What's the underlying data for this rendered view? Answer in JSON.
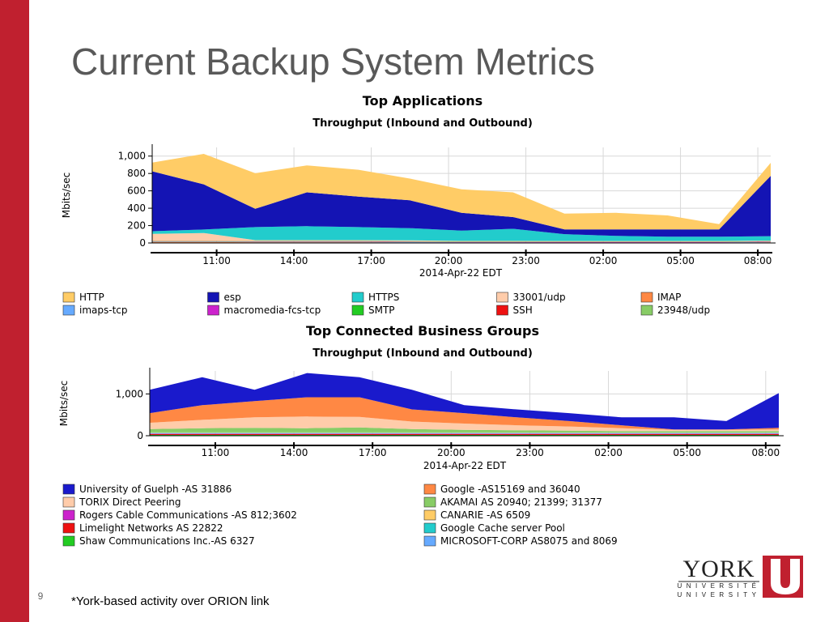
{
  "slide": {
    "title": "Current Backup System Metrics",
    "page_number": "9",
    "footnote": "*York-based activity over ORION link",
    "logo": {
      "name": "YORK",
      "line1": "UNIVERSITÉ",
      "line2": "UNIVERSITY"
    }
  },
  "chart_data": [
    {
      "type": "stacked-area",
      "title": "Top Applications",
      "subtitle": "Throughput (Inbound and Outbound)",
      "xlabel": "2014-Apr-22 EDT",
      "ylabel": "Mbits/sec",
      "x": [
        8.5,
        10.5,
        12.5,
        14.5,
        16.5,
        18.5,
        20.5,
        22.5,
        24.5,
        26.5,
        28.5,
        30.5,
        32.5
      ],
      "xlim": [
        8.5,
        32.5
      ],
      "xticks": [
        {
          "value": 11,
          "label": "11:00"
        },
        {
          "value": 14,
          "label": "14:00"
        },
        {
          "value": 17,
          "label": "17:00"
        },
        {
          "value": 20,
          "label": "20:00"
        },
        {
          "value": 23,
          "label": "23:00"
        },
        {
          "value": 26,
          "label": "02:00"
        },
        {
          "value": 29,
          "label": "05:00"
        },
        {
          "value": 32,
          "label": "08:00"
        }
      ],
      "ylim": [
        0,
        1100
      ],
      "yticks": [
        0,
        200,
        400,
        600,
        800,
        {
          "value": 1000,
          "label": "1,000"
        }
      ],
      "grid": true,
      "series": [
        {
          "name": "HTTP",
          "color": "#ffcc66",
          "values": [
            100,
            350,
            410,
            310,
            310,
            250,
            270,
            285,
            180,
            190,
            160,
            60,
            150
          ]
        },
        {
          "name": "esp",
          "color": "#1414b4",
          "values": [
            690,
            520,
            210,
            390,
            350,
            320,
            205,
            135,
            55,
            75,
            85,
            85,
            695
          ]
        },
        {
          "name": "HTTPS",
          "color": "#22cccc",
          "values": [
            30,
            40,
            150,
            160,
            150,
            140,
            120,
            140,
            80,
            60,
            50,
            50,
            50
          ]
        },
        {
          "name": "33001/udp",
          "color": "#ffccaa",
          "values": [
            80,
            90,
            10,
            10,
            10,
            10,
            5,
            5,
            5,
            5,
            5,
            5,
            5
          ]
        },
        {
          "name": "IMAP",
          "color": "#ff8844",
          "values": [
            10,
            10,
            8,
            8,
            8,
            6,
            5,
            5,
            4,
            4,
            4,
            4,
            8
          ]
        },
        {
          "name": "imaps-tcp",
          "color": "#66aaff",
          "values": [
            3,
            3,
            3,
            3,
            3,
            3,
            2,
            2,
            2,
            2,
            2,
            2,
            3
          ]
        },
        {
          "name": "macromedia-fcs-tcp",
          "color": "#cc22cc",
          "values": [
            4,
            4,
            4,
            4,
            4,
            4,
            3,
            3,
            3,
            3,
            3,
            3,
            4
          ]
        },
        {
          "name": "SMTP",
          "color": "#22cc22",
          "values": [
            3,
            3,
            3,
            3,
            3,
            3,
            3,
            3,
            3,
            3,
            3,
            3,
            3
          ]
        },
        {
          "name": "SSH",
          "color": "#ee1111",
          "values": [
            2,
            2,
            2,
            2,
            2,
            2,
            2,
            2,
            2,
            2,
            2,
            2,
            2
          ]
        },
        {
          "name": "23948/udp",
          "color": "#88cc66",
          "values": [
            3,
            3,
            3,
            3,
            3,
            3,
            3,
            3,
            3,
            3,
            3,
            3,
            3
          ]
        }
      ]
    },
    {
      "type": "stacked-area",
      "title": "Top Connected Business Groups",
      "subtitle": "Throughput (Inbound and Outbound)",
      "xlabel": "2014-Apr-22 EDT",
      "ylabel": "Mbits/sec",
      "x": [
        8.5,
        10.5,
        12.5,
        14.5,
        16.5,
        18.5,
        20.5,
        22.5,
        24.5,
        26.5,
        28.5,
        30.5,
        32.5
      ],
      "xlim": [
        8.5,
        32.5
      ],
      "xticks": [
        {
          "value": 11,
          "label": "11:00"
        },
        {
          "value": 14,
          "label": "14:00"
        },
        {
          "value": 17,
          "label": "17:00"
        },
        {
          "value": 20,
          "label": "20:00"
        },
        {
          "value": 23,
          "label": "23:00"
        },
        {
          "value": 26,
          "label": "02:00"
        },
        {
          "value": 29,
          "label": "05:00"
        },
        {
          "value": 32,
          "label": "08:00"
        }
      ],
      "ylim": [
        0,
        1550
      ],
      "yticks": [
        0,
        {
          "value": 1000,
          "label": "1,000"
        }
      ],
      "grid": true,
      "series": [
        {
          "name": "University of Guelph -AS 31886",
          "color": "#1a1acc",
          "values": [
            560,
            670,
            270,
            580,
            480,
            470,
            190,
            190,
            190,
            190,
            290,
            200,
            830
          ]
        },
        {
          "name": "TORIX Direct Peering",
          "color": "#ffccaa",
          "values": [
            150,
            200,
            250,
            280,
            250,
            180,
            150,
            120,
            100,
            70,
            30,
            30,
            40
          ]
        },
        {
          "name": "Rogers Cable Communications -AS 812;3602",
          "color": "#cc22cc",
          "values": [
            10,
            10,
            10,
            10,
            10,
            10,
            10,
            10,
            10,
            10,
            10,
            10,
            10
          ]
        },
        {
          "name": "Limelight Networks AS 22822",
          "color": "#ee1111",
          "values": [
            20,
            20,
            20,
            20,
            20,
            20,
            20,
            20,
            20,
            20,
            20,
            20,
            20
          ]
        },
        {
          "name": "Shaw Communications Inc.-AS 6327",
          "color": "#22cc22",
          "values": [
            20,
            20,
            20,
            20,
            20,
            20,
            20,
            20,
            20,
            20,
            20,
            20,
            20
          ]
        },
        {
          "name": "Google -AS15169 and 36040",
          "color": "#ff8844",
          "values": [
            230,
            350,
            390,
            460,
            470,
            290,
            250,
            190,
            130,
            70,
            10,
            10,
            40
          ]
        },
        {
          "name": "AKAMAI   AS 20940; 21399; 31377",
          "color": "#88cc66",
          "values": [
            80,
            100,
            110,
            100,
            120,
            80,
            60,
            50,
            40,
            30,
            30,
            30,
            30
          ]
        },
        {
          "name": "CANARIE -AS 6509",
          "color": "#ffcc66",
          "values": [
            10,
            10,
            10,
            10,
            10,
            10,
            10,
            10,
            10,
            10,
            10,
            10,
            10
          ]
        },
        {
          "name": "Google Cache server Pool",
          "color": "#22cccc",
          "values": [
            10,
            10,
            10,
            10,
            10,
            10,
            10,
            10,
            10,
            10,
            10,
            10,
            10
          ]
        },
        {
          "name": "MICROSOFT-CORP  AS8075 and 8069",
          "color": "#66aaff",
          "values": [
            10,
            10,
            10,
            10,
            10,
            10,
            10,
            10,
            10,
            10,
            10,
            10,
            10
          ]
        }
      ]
    }
  ]
}
